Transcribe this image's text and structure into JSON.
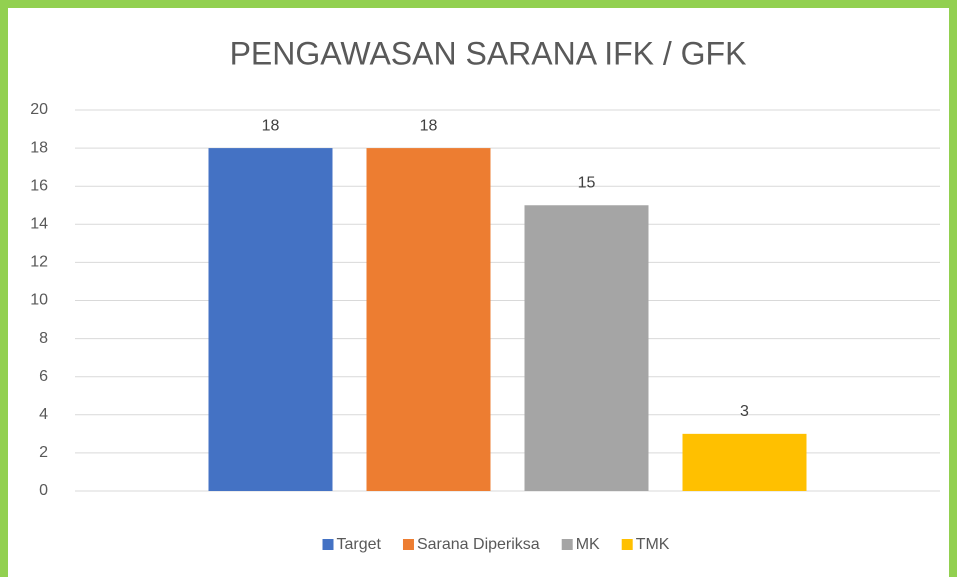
{
  "chart_data": {
    "type": "bar",
    "title": "PENGAWASAN SARANA IFK / GFK",
    "categories": [
      null
    ],
    "series": [
      {
        "name": "Target",
        "color": "#4472c4",
        "values": [
          18
        ]
      },
      {
        "name": "Sarana Diperiksa",
        "color": "#ed7d31",
        "values": [
          18
        ]
      },
      {
        "name": "MK",
        "color": "#a5a5a5",
        "values": [
          15
        ]
      },
      {
        "name": "TMK",
        "color": "#ffc000",
        "values": [
          3
        ]
      }
    ],
    "ylim": [
      0,
      20
    ],
    "yticks": [
      0,
      2,
      4,
      6,
      8,
      10,
      12,
      14,
      16,
      18,
      20
    ],
    "grid": true,
    "legend": "bottom",
    "data_labels": true
  }
}
